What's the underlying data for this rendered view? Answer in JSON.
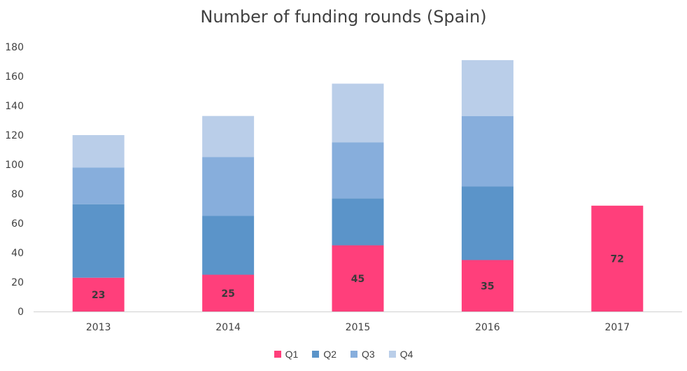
{
  "chart_data": {
    "type": "bar",
    "stacked": true,
    "title": "Number of funding rounds (Spain)",
    "xlabel": "",
    "ylabel": "",
    "categories": [
      "2013",
      "2014",
      "2015",
      "2016",
      "2017"
    ],
    "ylim": [
      0,
      180
    ],
    "yticks": [
      0,
      20,
      40,
      60,
      80,
      100,
      120,
      140,
      160,
      180
    ],
    "grid": false,
    "legend_position": "bottom",
    "series": [
      {
        "name": "Q1",
        "color": "#FF3F7B",
        "values": [
          23,
          25,
          45,
          35,
          72
        ],
        "show_labels": true
      },
      {
        "name": "Q2",
        "color": "#5B94C9",
        "values": [
          50,
          40,
          32,
          50,
          null
        ],
        "show_labels": false
      },
      {
        "name": "Q3",
        "color": "#87AEDC",
        "values": [
          25,
          40,
          38,
          48,
          null
        ],
        "show_labels": false
      },
      {
        "name": "Q4",
        "color": "#BACEE9",
        "values": [
          22,
          28,
          40,
          38,
          null
        ],
        "show_labels": false
      }
    ]
  }
}
